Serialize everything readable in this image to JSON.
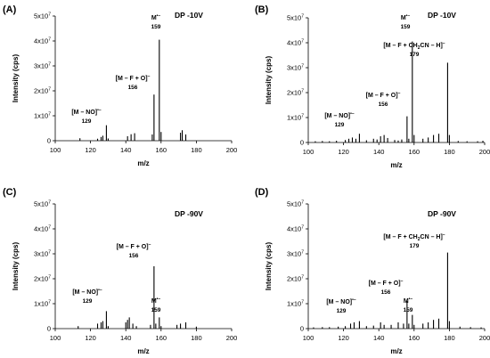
{
  "chart_data": [
    {
      "type": "bar",
      "panel": "(A)",
      "condition": "DP -10V",
      "xlabel": "m/z",
      "ylabel": "Intensity (cps)",
      "xlim": [
        100,
        200
      ],
      "ylim": [
        0,
        50000000
      ],
      "xticks": [
        "100",
        "120",
        "140",
        "160",
        "180",
        "200"
      ],
      "yticks": [
        {
          "value": 0,
          "base": "0",
          "exp": ""
        },
        {
          "value": 10000000,
          "base": "1x10",
          "exp": "7"
        },
        {
          "value": 20000000,
          "base": "2x10",
          "exp": "7"
        },
        {
          "value": 30000000,
          "base": "3x10",
          "exp": "7"
        },
        {
          "value": 40000000,
          "base": "4x10",
          "exp": "7"
        },
        {
          "value": 50000000,
          "base": "5x10",
          "exp": "7"
        }
      ],
      "peaks": [
        {
          "mz": 114,
          "intensity": 1000000
        },
        {
          "mz": 124,
          "intensity": 800000
        },
        {
          "mz": 126,
          "intensity": 1500000
        },
        {
          "mz": 127,
          "intensity": 2000000
        },
        {
          "mz": 129,
          "intensity": 6200000
        },
        {
          "mz": 130,
          "intensity": 900000
        },
        {
          "mz": 141,
          "intensity": 1800000
        },
        {
          "mz": 143,
          "intensity": 2600000
        },
        {
          "mz": 145,
          "intensity": 3000000
        },
        {
          "mz": 155,
          "intensity": 2500000
        },
        {
          "mz": 156,
          "intensity": 18500000
        },
        {
          "mz": 159,
          "intensity": 40500000
        },
        {
          "mz": 160,
          "intensity": 3500000
        },
        {
          "mz": 171,
          "intensity": 3200000
        },
        {
          "mz": 172,
          "intensity": 4200000
        },
        {
          "mz": 174,
          "intensity": 2500000
        }
      ],
      "annotations": [
        {
          "label": "[M – NO]",
          "sup": "•–",
          "mz_label": "129",
          "peak_mz": 129
        },
        {
          "label": "[M – F + O]",
          "sup": "–",
          "mz_label": "156",
          "peak_mz": 156
        },
        {
          "label": "M",
          "sup": "•–",
          "mz_label": "159",
          "peak_mz": 159
        }
      ]
    },
    {
      "type": "bar",
      "panel": "(B)",
      "condition": "DP -10V",
      "xlabel": "m/z",
      "ylabel": "Intensity (cps)",
      "xlim": [
        100,
        200
      ],
      "ylim": [
        0,
        50000000
      ],
      "xticks": [
        "100",
        "120",
        "140",
        "160",
        "180",
        "200"
      ],
      "yticks": [
        {
          "value": 0,
          "base": "0",
          "exp": ""
        },
        {
          "value": 10000000,
          "base": "1x10",
          "exp": "7"
        },
        {
          "value": 20000000,
          "base": "2x10",
          "exp": "7"
        },
        {
          "value": 30000000,
          "base": "3x10",
          "exp": "7"
        },
        {
          "value": 40000000,
          "base": "4x10",
          "exp": "7"
        },
        {
          "value": 50000000,
          "base": "5x10",
          "exp": "7"
        }
      ],
      "peaks": [
        {
          "mz": 104,
          "intensity": 500000
        },
        {
          "mz": 108,
          "intensity": 600000
        },
        {
          "mz": 112,
          "intensity": 500000
        },
        {
          "mz": 116,
          "intensity": 700000
        },
        {
          "mz": 121,
          "intensity": 1000000
        },
        {
          "mz": 123,
          "intensity": 1500000
        },
        {
          "mz": 125,
          "intensity": 2000000
        },
        {
          "mz": 127,
          "intensity": 1500000
        },
        {
          "mz": 129,
          "intensity": 3500000
        },
        {
          "mz": 133,
          "intensity": 900000
        },
        {
          "mz": 137,
          "intensity": 1500000
        },
        {
          "mz": 139,
          "intensity": 1200000
        },
        {
          "mz": 141,
          "intensity": 2500000
        },
        {
          "mz": 143,
          "intensity": 3000000
        },
        {
          "mz": 145,
          "intensity": 1800000
        },
        {
          "mz": 149,
          "intensity": 1000000
        },
        {
          "mz": 151,
          "intensity": 800000
        },
        {
          "mz": 153,
          "intensity": 1200000
        },
        {
          "mz": 156,
          "intensity": 10500000
        },
        {
          "mz": 157,
          "intensity": 1500000
        },
        {
          "mz": 159,
          "intensity": 40500000
        },
        {
          "mz": 160,
          "intensity": 3000000
        },
        {
          "mz": 165,
          "intensity": 1500000
        },
        {
          "mz": 168,
          "intensity": 2000000
        },
        {
          "mz": 171,
          "intensity": 3000000
        },
        {
          "mz": 174,
          "intensity": 3500000
        },
        {
          "mz": 179,
          "intensity": 32000000
        },
        {
          "mz": 180,
          "intensity": 3000000
        },
        {
          "mz": 185,
          "intensity": 600000
        },
        {
          "mz": 190,
          "intensity": 500000
        },
        {
          "mz": 196,
          "intensity": 500000
        },
        {
          "mz": 199,
          "intensity": 700000
        }
      ],
      "annotations": [
        {
          "label": "[M – NO]",
          "sup": "•–",
          "mz_label": "129",
          "peak_mz": 129
        },
        {
          "label": "[M – F + O]",
          "sup": "–",
          "mz_label": "156",
          "peak_mz": 156
        },
        {
          "label": "M",
          "sup": "•–",
          "mz_label": "159",
          "peak_mz": 159
        },
        {
          "label": "[M – F + CH",
          "sub": "2",
          "label2": "CN – H]",
          "sup": "–",
          "mz_label": "179",
          "peak_mz": 179
        }
      ]
    },
    {
      "type": "bar",
      "panel": "(C)",
      "condition": "DP -90V",
      "xlabel": "m/z",
      "ylabel": "Intensity (cps)",
      "xlim": [
        100,
        200
      ],
      "ylim": [
        0,
        50000000
      ],
      "xticks": [
        "100",
        "120",
        "140",
        "160",
        "180",
        "200"
      ],
      "yticks": [
        {
          "value": 0,
          "base": "0",
          "exp": ""
        },
        {
          "value": 10000000,
          "base": "1x10",
          "exp": "7"
        },
        {
          "value": 20000000,
          "base": "2x10",
          "exp": "7"
        },
        {
          "value": 30000000,
          "base": "3x10",
          "exp": "7"
        },
        {
          "value": 40000000,
          "base": "4x10",
          "exp": "7"
        },
        {
          "value": 50000000,
          "base": "5x10",
          "exp": "7"
        }
      ],
      "peaks": [
        {
          "mz": 113,
          "intensity": 1000000
        },
        {
          "mz": 124,
          "intensity": 2000000
        },
        {
          "mz": 126,
          "intensity": 2500000
        },
        {
          "mz": 127,
          "intensity": 3000000
        },
        {
          "mz": 129,
          "intensity": 7000000
        },
        {
          "mz": 130,
          "intensity": 1000000
        },
        {
          "mz": 140,
          "intensity": 2500000
        },
        {
          "mz": 141,
          "intensity": 3500000
        },
        {
          "mz": 142,
          "intensity": 4500000
        },
        {
          "mz": 144,
          "intensity": 2000000
        },
        {
          "mz": 146,
          "intensity": 1000000
        },
        {
          "mz": 154,
          "intensity": 1500000
        },
        {
          "mz": 156,
          "intensity": 25000000
        },
        {
          "mz": 157,
          "intensity": 2000000
        },
        {
          "mz": 159,
          "intensity": 4500000
        },
        {
          "mz": 160,
          "intensity": 1000000
        },
        {
          "mz": 169,
          "intensity": 1500000
        },
        {
          "mz": 171,
          "intensity": 2000000
        },
        {
          "mz": 174,
          "intensity": 2500000
        },
        {
          "mz": 180,
          "intensity": 800000
        }
      ],
      "annotations": [
        {
          "label": "[M – NO]",
          "sup": "•–",
          "mz_label": "129",
          "peak_mz": 129
        },
        {
          "label": "[M – F + O]",
          "sup": "–",
          "mz_label": "156",
          "peak_mz": 156
        },
        {
          "label": "M",
          "sup": "•–",
          "mz_label": "159",
          "peak_mz": 159
        }
      ]
    },
    {
      "type": "bar",
      "panel": "(D)",
      "condition": "DP -90V",
      "xlabel": "m/z",
      "ylabel": "Intensity (cps)",
      "xlim": [
        100,
        200
      ],
      "ylim": [
        0,
        50000000
      ],
      "xticks": [
        "100",
        "120",
        "140",
        "160",
        "180",
        "200"
      ],
      "yticks": [
        {
          "value": 0,
          "base": "0",
          "exp": ""
        },
        {
          "value": 10000000,
          "base": "1x10",
          "exp": "7"
        },
        {
          "value": 20000000,
          "base": "2x10",
          "exp": "7"
        },
        {
          "value": 30000000,
          "base": "3x10",
          "exp": "7"
        },
        {
          "value": 40000000,
          "base": "4x10",
          "exp": "7"
        },
        {
          "value": 50000000,
          "base": "5x10",
          "exp": "7"
        }
      ],
      "peaks": [
        {
          "mz": 103,
          "intensity": 500000
        },
        {
          "mz": 108,
          "intensity": 600000
        },
        {
          "mz": 112,
          "intensity": 600000
        },
        {
          "mz": 117,
          "intensity": 800000
        },
        {
          "mz": 121,
          "intensity": 1000000
        },
        {
          "mz": 124,
          "intensity": 2000000
        },
        {
          "mz": 126,
          "intensity": 2500000
        },
        {
          "mz": 129,
          "intensity": 3000000
        },
        {
          "mz": 133,
          "intensity": 1000000
        },
        {
          "mz": 137,
          "intensity": 1200000
        },
        {
          "mz": 141,
          "intensity": 2500000
        },
        {
          "mz": 143,
          "intensity": 1500000
        },
        {
          "mz": 147,
          "intensity": 1500000
        },
        {
          "mz": 151,
          "intensity": 2500000
        },
        {
          "mz": 154,
          "intensity": 2000000
        },
        {
          "mz": 156,
          "intensity": 11000000
        },
        {
          "mz": 157,
          "intensity": 2000000
        },
        {
          "mz": 159,
          "intensity": 5500000
        },
        {
          "mz": 160,
          "intensity": 1500000
        },
        {
          "mz": 165,
          "intensity": 2000000
        },
        {
          "mz": 168,
          "intensity": 2500000
        },
        {
          "mz": 171,
          "intensity": 3500000
        },
        {
          "mz": 174,
          "intensity": 4000000
        },
        {
          "mz": 179,
          "intensity": 30500000
        },
        {
          "mz": 180,
          "intensity": 3000000
        },
        {
          "mz": 186,
          "intensity": 800000
        },
        {
          "mz": 192,
          "intensity": 600000
        },
        {
          "mz": 198,
          "intensity": 500000
        }
      ],
      "annotations": [
        {
          "label": "[M – NO]",
          "sup": "•–",
          "mz_label": "129",
          "peak_mz": 129
        },
        {
          "label": "[M – F + O]",
          "sup": "–",
          "mz_label": "156",
          "peak_mz": 156
        },
        {
          "label": "M",
          "sup": "•–",
          "mz_label": "159",
          "peak_mz": 159
        },
        {
          "label": "[M – F + CH",
          "sub": "2",
          "label2": "CN – H]",
          "sup": "–",
          "mz_label": "179",
          "peak_mz": 179
        }
      ]
    }
  ]
}
